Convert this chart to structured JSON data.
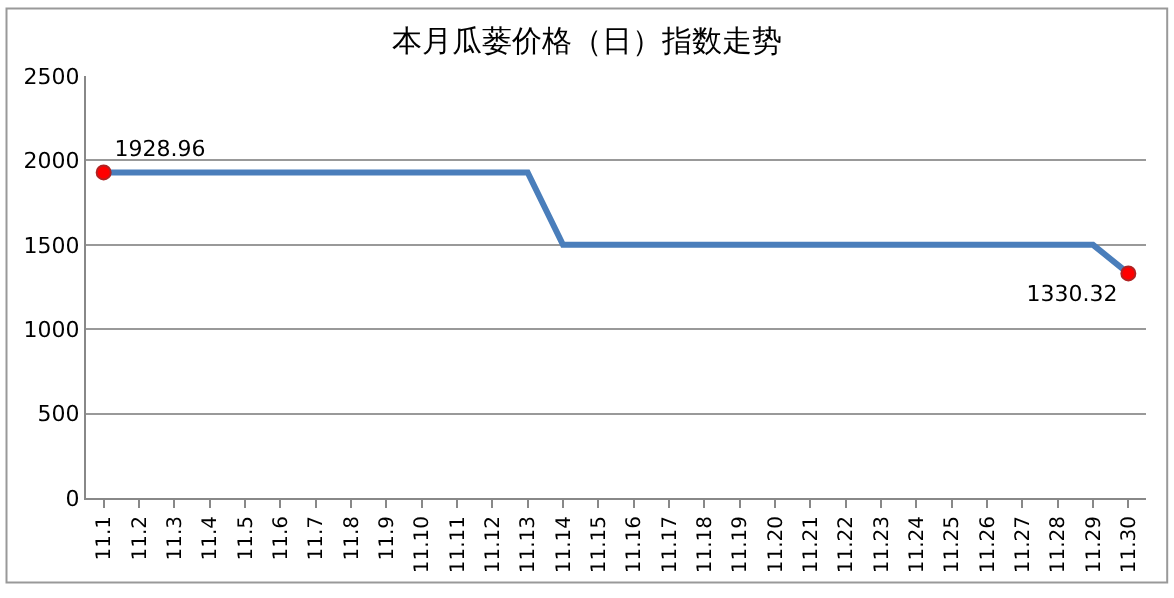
{
  "chart_data": {
    "type": "line",
    "title": "本月瓜蒌价格（日）指数走势",
    "categories": [
      "11.1",
      "11.2",
      "11.3",
      "11.4",
      "11.5",
      "11.6",
      "11.7",
      "11.8",
      "11.9",
      "11.10",
      "11.11",
      "11.12",
      "11.13",
      "11.14",
      "11.15",
      "11.16",
      "11.17",
      "11.18",
      "11.19",
      "11.20",
      "11.21",
      "11.22",
      "11.23",
      "11.24",
      "11.25",
      "11.26",
      "11.27",
      "11.28",
      "11.29",
      "11.30"
    ],
    "series": [
      {
        "color": "#4a7ebb",
        "values": [
          1928.96,
          1928.96,
          1928.96,
          1928.96,
          1928.96,
          1928.96,
          1928.96,
          1928.96,
          1928.96,
          1928.96,
          1928.96,
          1928.96,
          1928.96,
          1500,
          1500,
          1500,
          1500,
          1500,
          1500,
          1500,
          1500,
          1500,
          1500,
          1500,
          1500,
          1500,
          1500,
          1500,
          1500,
          1330.32
        ]
      },
      {
        "type": "scatter",
        "color": "#ff0000",
        "values": [
          1928.96,
          null,
          null,
          null,
          null,
          null,
          null,
          null,
          null,
          null,
          null,
          null,
          null,
          null,
          null,
          null,
          null,
          null,
          null,
          null,
          null,
          null,
          null,
          null,
          null,
          null,
          null,
          null,
          null,
          1330.32
        ],
        "value_labels": [
          "1928.96",
          null,
          null,
          null,
          null,
          null,
          null,
          null,
          null,
          null,
          null,
          null,
          null,
          null,
          null,
          null,
          null,
          null,
          null,
          null,
          null,
          null,
          null,
          null,
          null,
          null,
          null,
          null,
          null,
          "1330.32"
        ]
      }
    ],
    "ylim": [
      0,
      2500
    ],
    "yticks": [
      0,
      500,
      1000,
      1500,
      2000,
      2500
    ],
    "grid": "y"
  }
}
